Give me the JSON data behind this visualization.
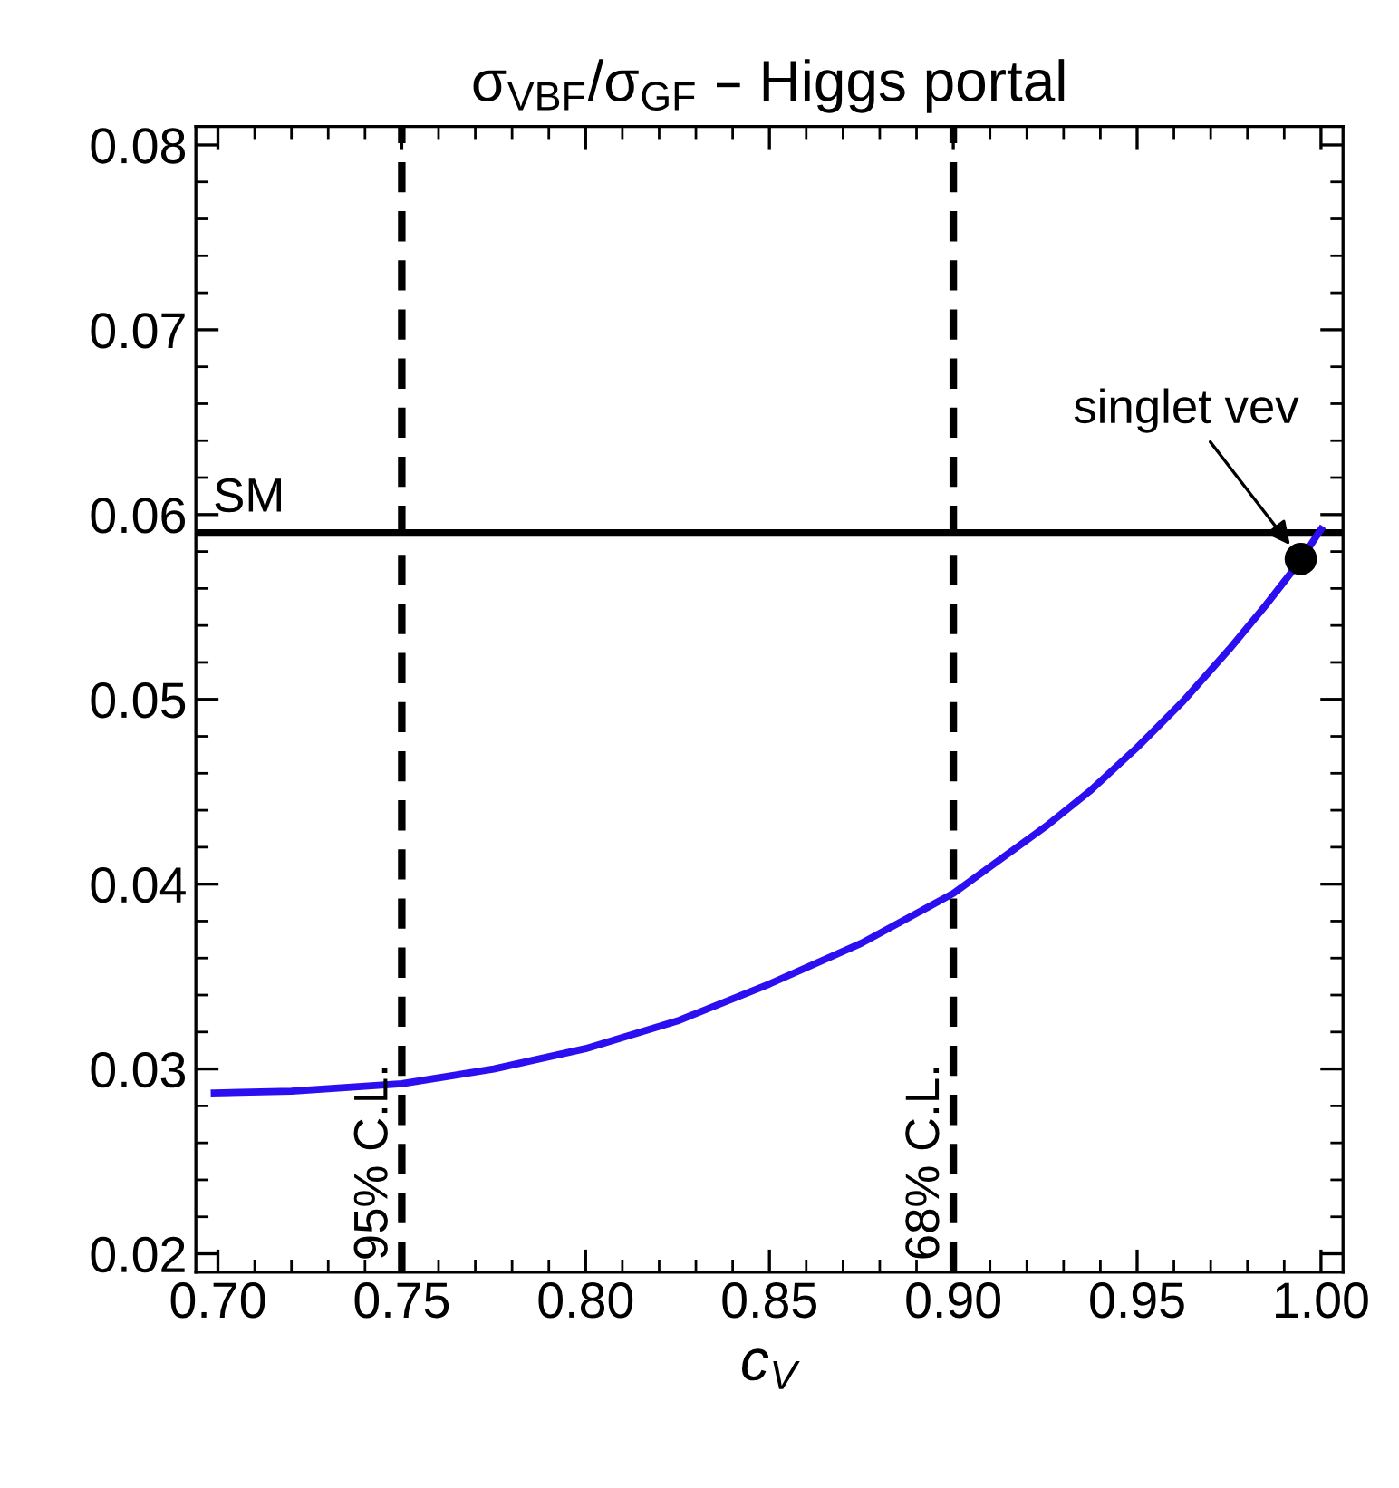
{
  "chart_data": {
    "type": "line",
    "title": "σ$_{VBF}$/σ$_{GF}$ – Higgs portal",
    "xlabel": "c$_{V}$",
    "xlim": [
      0.694,
      1.006
    ],
    "xticks": [
      {
        "value": 0.7,
        "label": "0.70"
      },
      {
        "value": 0.75,
        "label": "0.75"
      },
      {
        "value": 0.8,
        "label": "0.80"
      },
      {
        "value": 0.85,
        "label": "0.85"
      },
      {
        "value": 0.9,
        "label": "0.90"
      },
      {
        "value": 0.95,
        "label": "0.95"
      },
      {
        "value": 1.0,
        "label": "1.00"
      }
    ],
    "ylim": [
      0.019,
      0.081
    ],
    "yticks": [
      0.02,
      0.03,
      0.04,
      0.05,
      0.06,
      0.07,
      0.08
    ],
    "series": [
      {
        "color": "#2b0ff0",
        "x": [
          0.699,
          0.72,
          0.75,
          0.775,
          0.8,
          0.825,
          0.85,
          0.875,
          0.9,
          0.925,
          0.9375,
          0.95,
          0.9625,
          0.975,
          0.985,
          0.994,
          1.0
        ],
        "values": [
          0.0287,
          0.0288,
          0.0292,
          0.03,
          0.0311,
          0.0326,
          0.0346,
          0.0368,
          0.0395,
          0.0431,
          0.0451,
          0.0474,
          0.0499,
          0.0527,
          0.0551,
          0.0574,
          0.0592
        ]
      },
      {
        "type": "scatter",
        "color": "#000000",
        "marker": "circle",
        "x": [
          0.9945
        ],
        "values": [
          0.0576
        ]
      }
    ],
    "ref_lines": [
      {
        "axis": "y",
        "value": 0.059,
        "label": "SM",
        "color": "#000000",
        "line_style": "solid"
      },
      {
        "axis": "x",
        "value": 0.75,
        "label": "95% C.L.",
        "color": "#000000",
        "line_style": "dashed"
      },
      {
        "axis": "x",
        "value": 0.9,
        "label": "68% C.L.",
        "color": "#000000",
        "line_style": "dashed"
      }
    ],
    "annotations": [
      {
        "text": "singlet vev",
        "x": 0.9945,
        "y": 0.0576
      }
    ],
    "grid": false,
    "legend": false
  }
}
